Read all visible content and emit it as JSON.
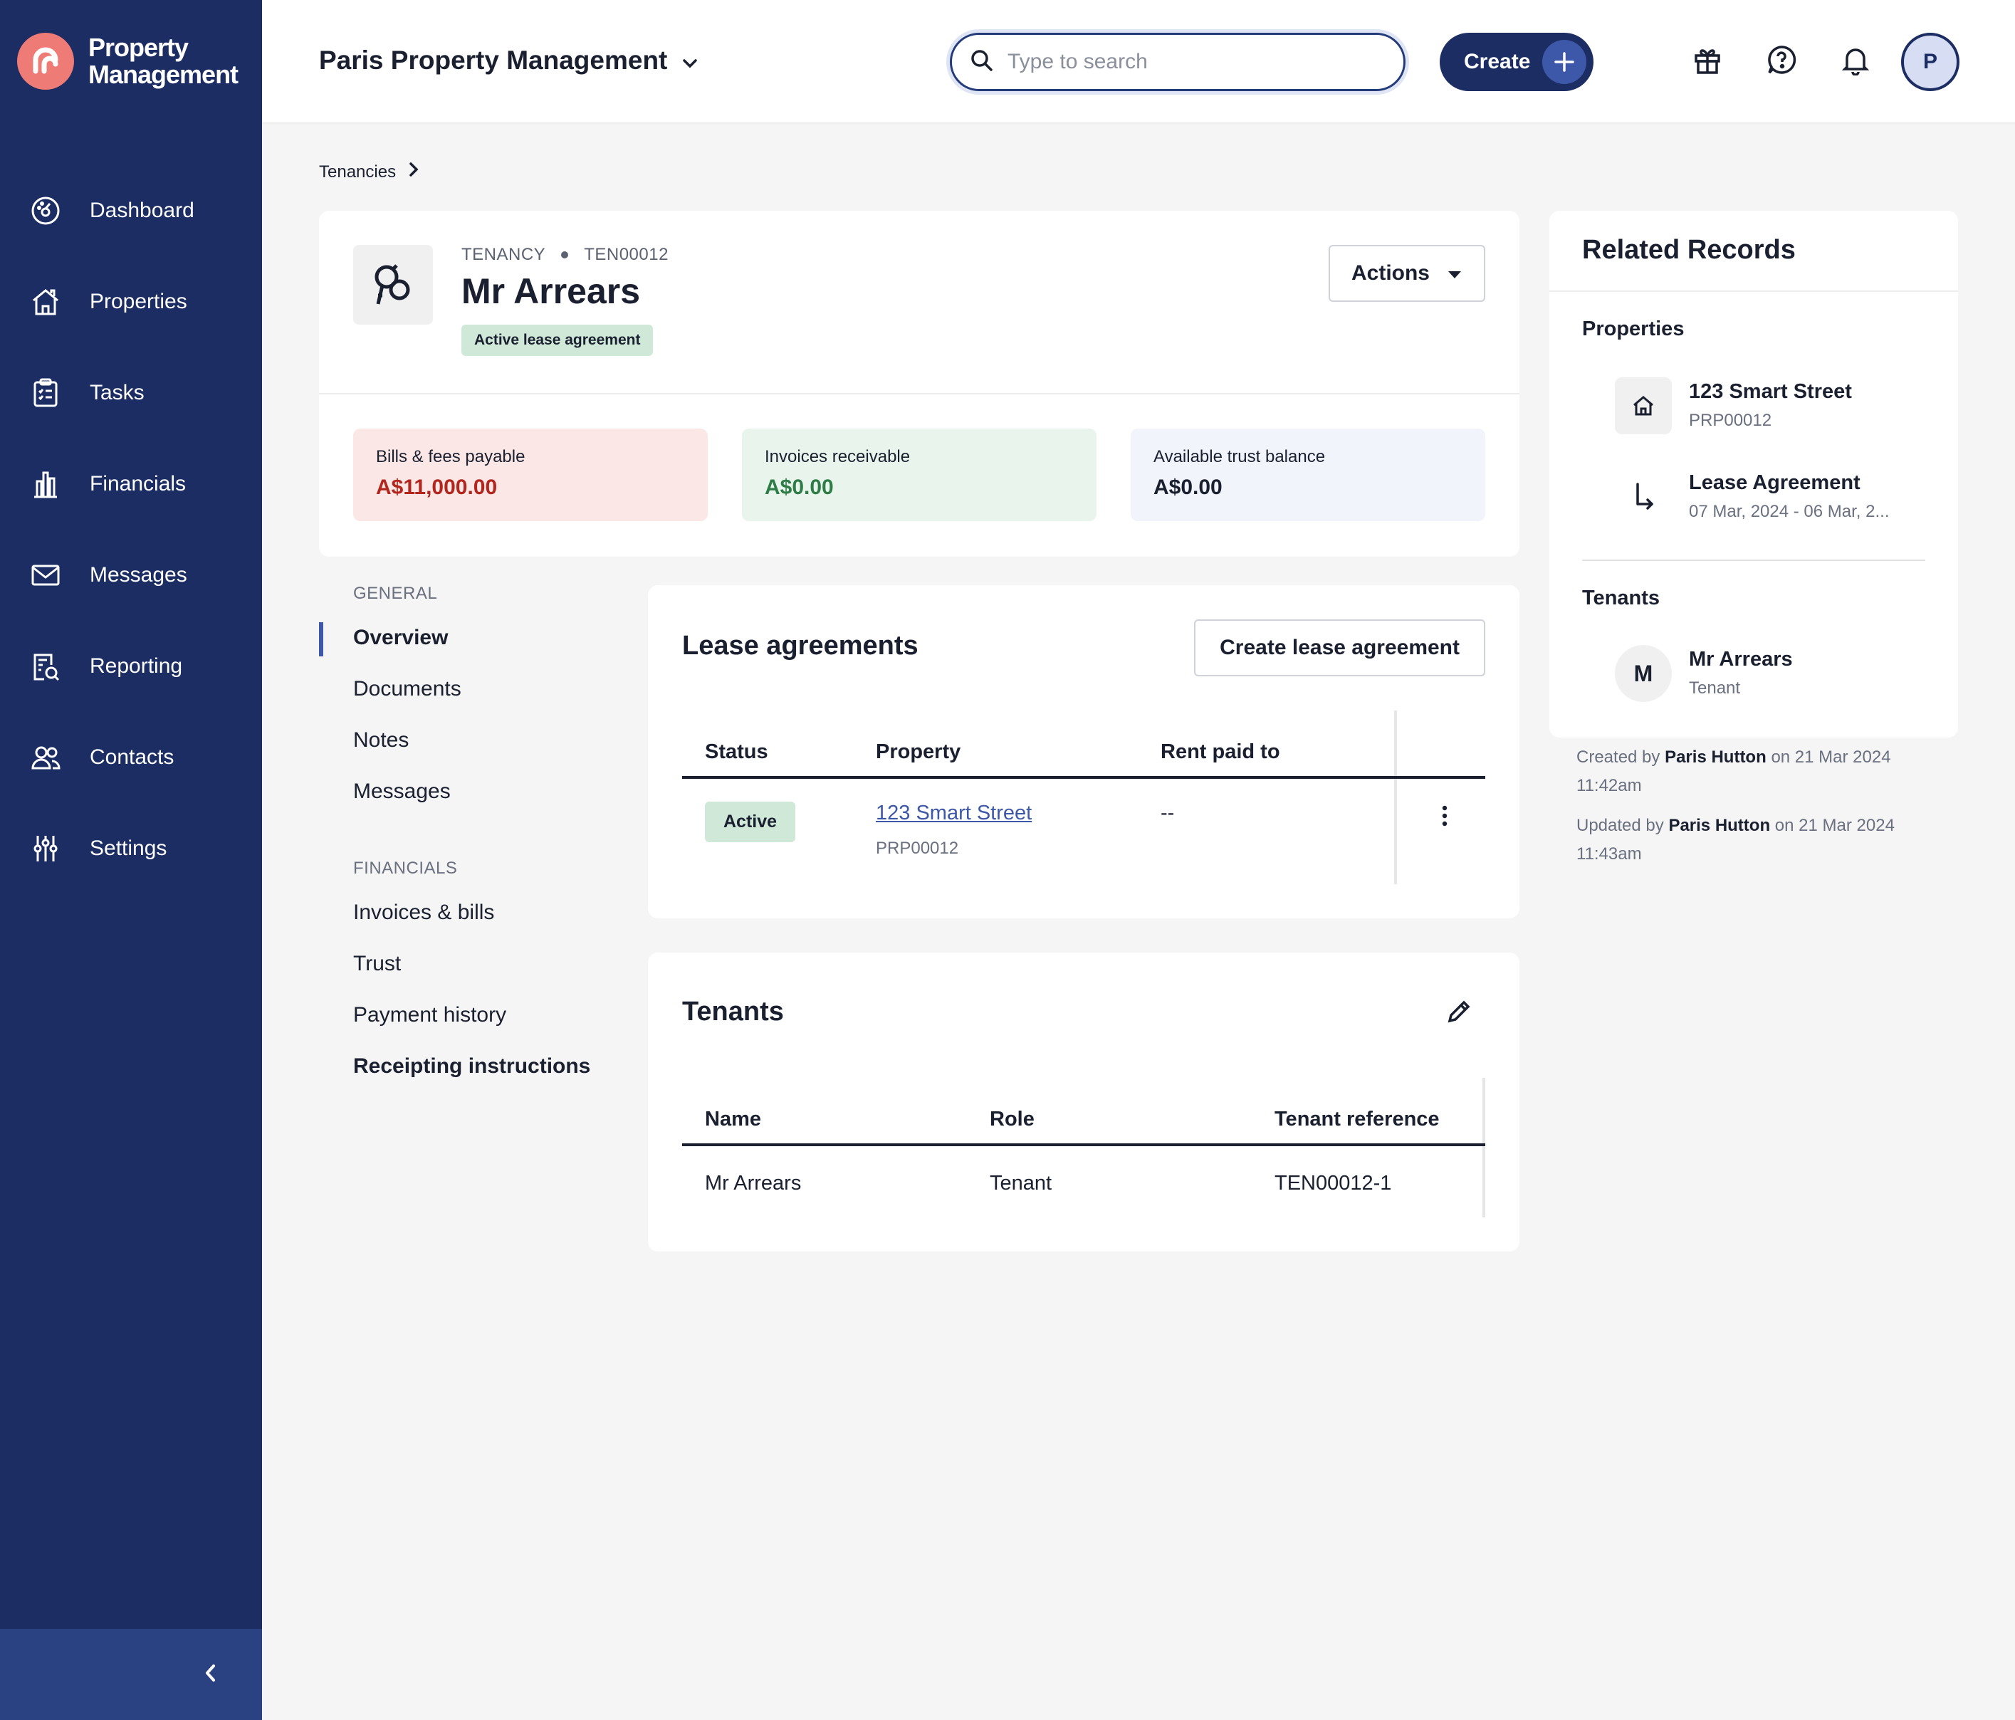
{
  "app": {
    "logo_line1": "Property",
    "logo_line2": "Management",
    "brand_color": "#1b2d63",
    "accent_color": "#ee7b75"
  },
  "sidebar": {
    "items": [
      {
        "label": "Dashboard",
        "icon": "dashboard-icon"
      },
      {
        "label": "Properties",
        "icon": "house-icon"
      },
      {
        "label": "Tasks",
        "icon": "clipboard-icon"
      },
      {
        "label": "Financials",
        "icon": "bank-icon"
      },
      {
        "label": "Messages",
        "icon": "envelope-icon"
      },
      {
        "label": "Reporting",
        "icon": "report-icon"
      },
      {
        "label": "Contacts",
        "icon": "people-icon"
      },
      {
        "label": "Settings",
        "icon": "sliders-icon"
      }
    ],
    "collapse_icon": "chevron-left-icon"
  },
  "header": {
    "org_name": "Paris Property Management",
    "search_placeholder": "Type to search",
    "create_label": "Create",
    "avatar_initial": "P",
    "icons": [
      "gift-icon",
      "help-icon",
      "bell-icon"
    ]
  },
  "breadcrumb": {
    "item": "Tenancies"
  },
  "tenancy": {
    "type_label": "TENANCY",
    "id": "TEN00012",
    "name": "Mr Arrears",
    "status_badge": "Active lease agreement",
    "actions_label": "Actions"
  },
  "stats": [
    {
      "label": "Bills & fees payable",
      "value": "A$11,000.00",
      "bg": "#fbe7e5",
      "color": "#b3261e"
    },
    {
      "label": "Invoices receivable",
      "value": "A$0.00",
      "bg": "#e8f4ec",
      "color": "#2e7d46"
    },
    {
      "label": "Available trust balance",
      "value": "A$0.00",
      "bg": "#f1f4fa",
      "color": "#1b2030"
    }
  ],
  "subnav": {
    "general_heading": "GENERAL",
    "general": [
      "Overview",
      "Documents",
      "Notes",
      "Messages"
    ],
    "financials_heading": "FINANCIALS",
    "financials": [
      "Invoices & bills",
      "Trust",
      "Payment history",
      "Receipting instructions"
    ]
  },
  "lease_agreements": {
    "title": "Lease agreements",
    "create_label": "Create lease agreement",
    "columns": [
      "Status",
      "Property",
      "Rent paid to"
    ],
    "rows": [
      {
        "status": "Active",
        "property": "123 Smart Street",
        "property_ref": "PRP00012",
        "rent_paid_to": "--"
      }
    ]
  },
  "tenants_card": {
    "title": "Tenants",
    "columns": [
      "Name",
      "Role",
      "Tenant reference"
    ],
    "rows": [
      {
        "name": "Mr Arrears",
        "role": "Tenant",
        "reference": "TEN00012-1"
      }
    ]
  },
  "related": {
    "title": "Related Records",
    "properties_heading": "Properties",
    "property": {
      "name": "123 Smart Street",
      "ref": "PRP00012"
    },
    "lease": {
      "name": "Lease Agreement",
      "dates": "07 Mar, 2024 - 06 Mar, 2..."
    },
    "tenants_heading": "Tenants",
    "tenant": {
      "initial": "M",
      "name": "Mr Arrears",
      "role": "Tenant"
    }
  },
  "audit": {
    "created_prefix": "Created by",
    "created_by": "Paris Hutton",
    "created_on": "on 21 Mar 2024",
    "created_time": "11:42am",
    "updated_prefix": "Updated by",
    "updated_by": "Paris Hutton",
    "updated_on": "on 21 Mar 2024",
    "updated_time": "11:43am"
  }
}
